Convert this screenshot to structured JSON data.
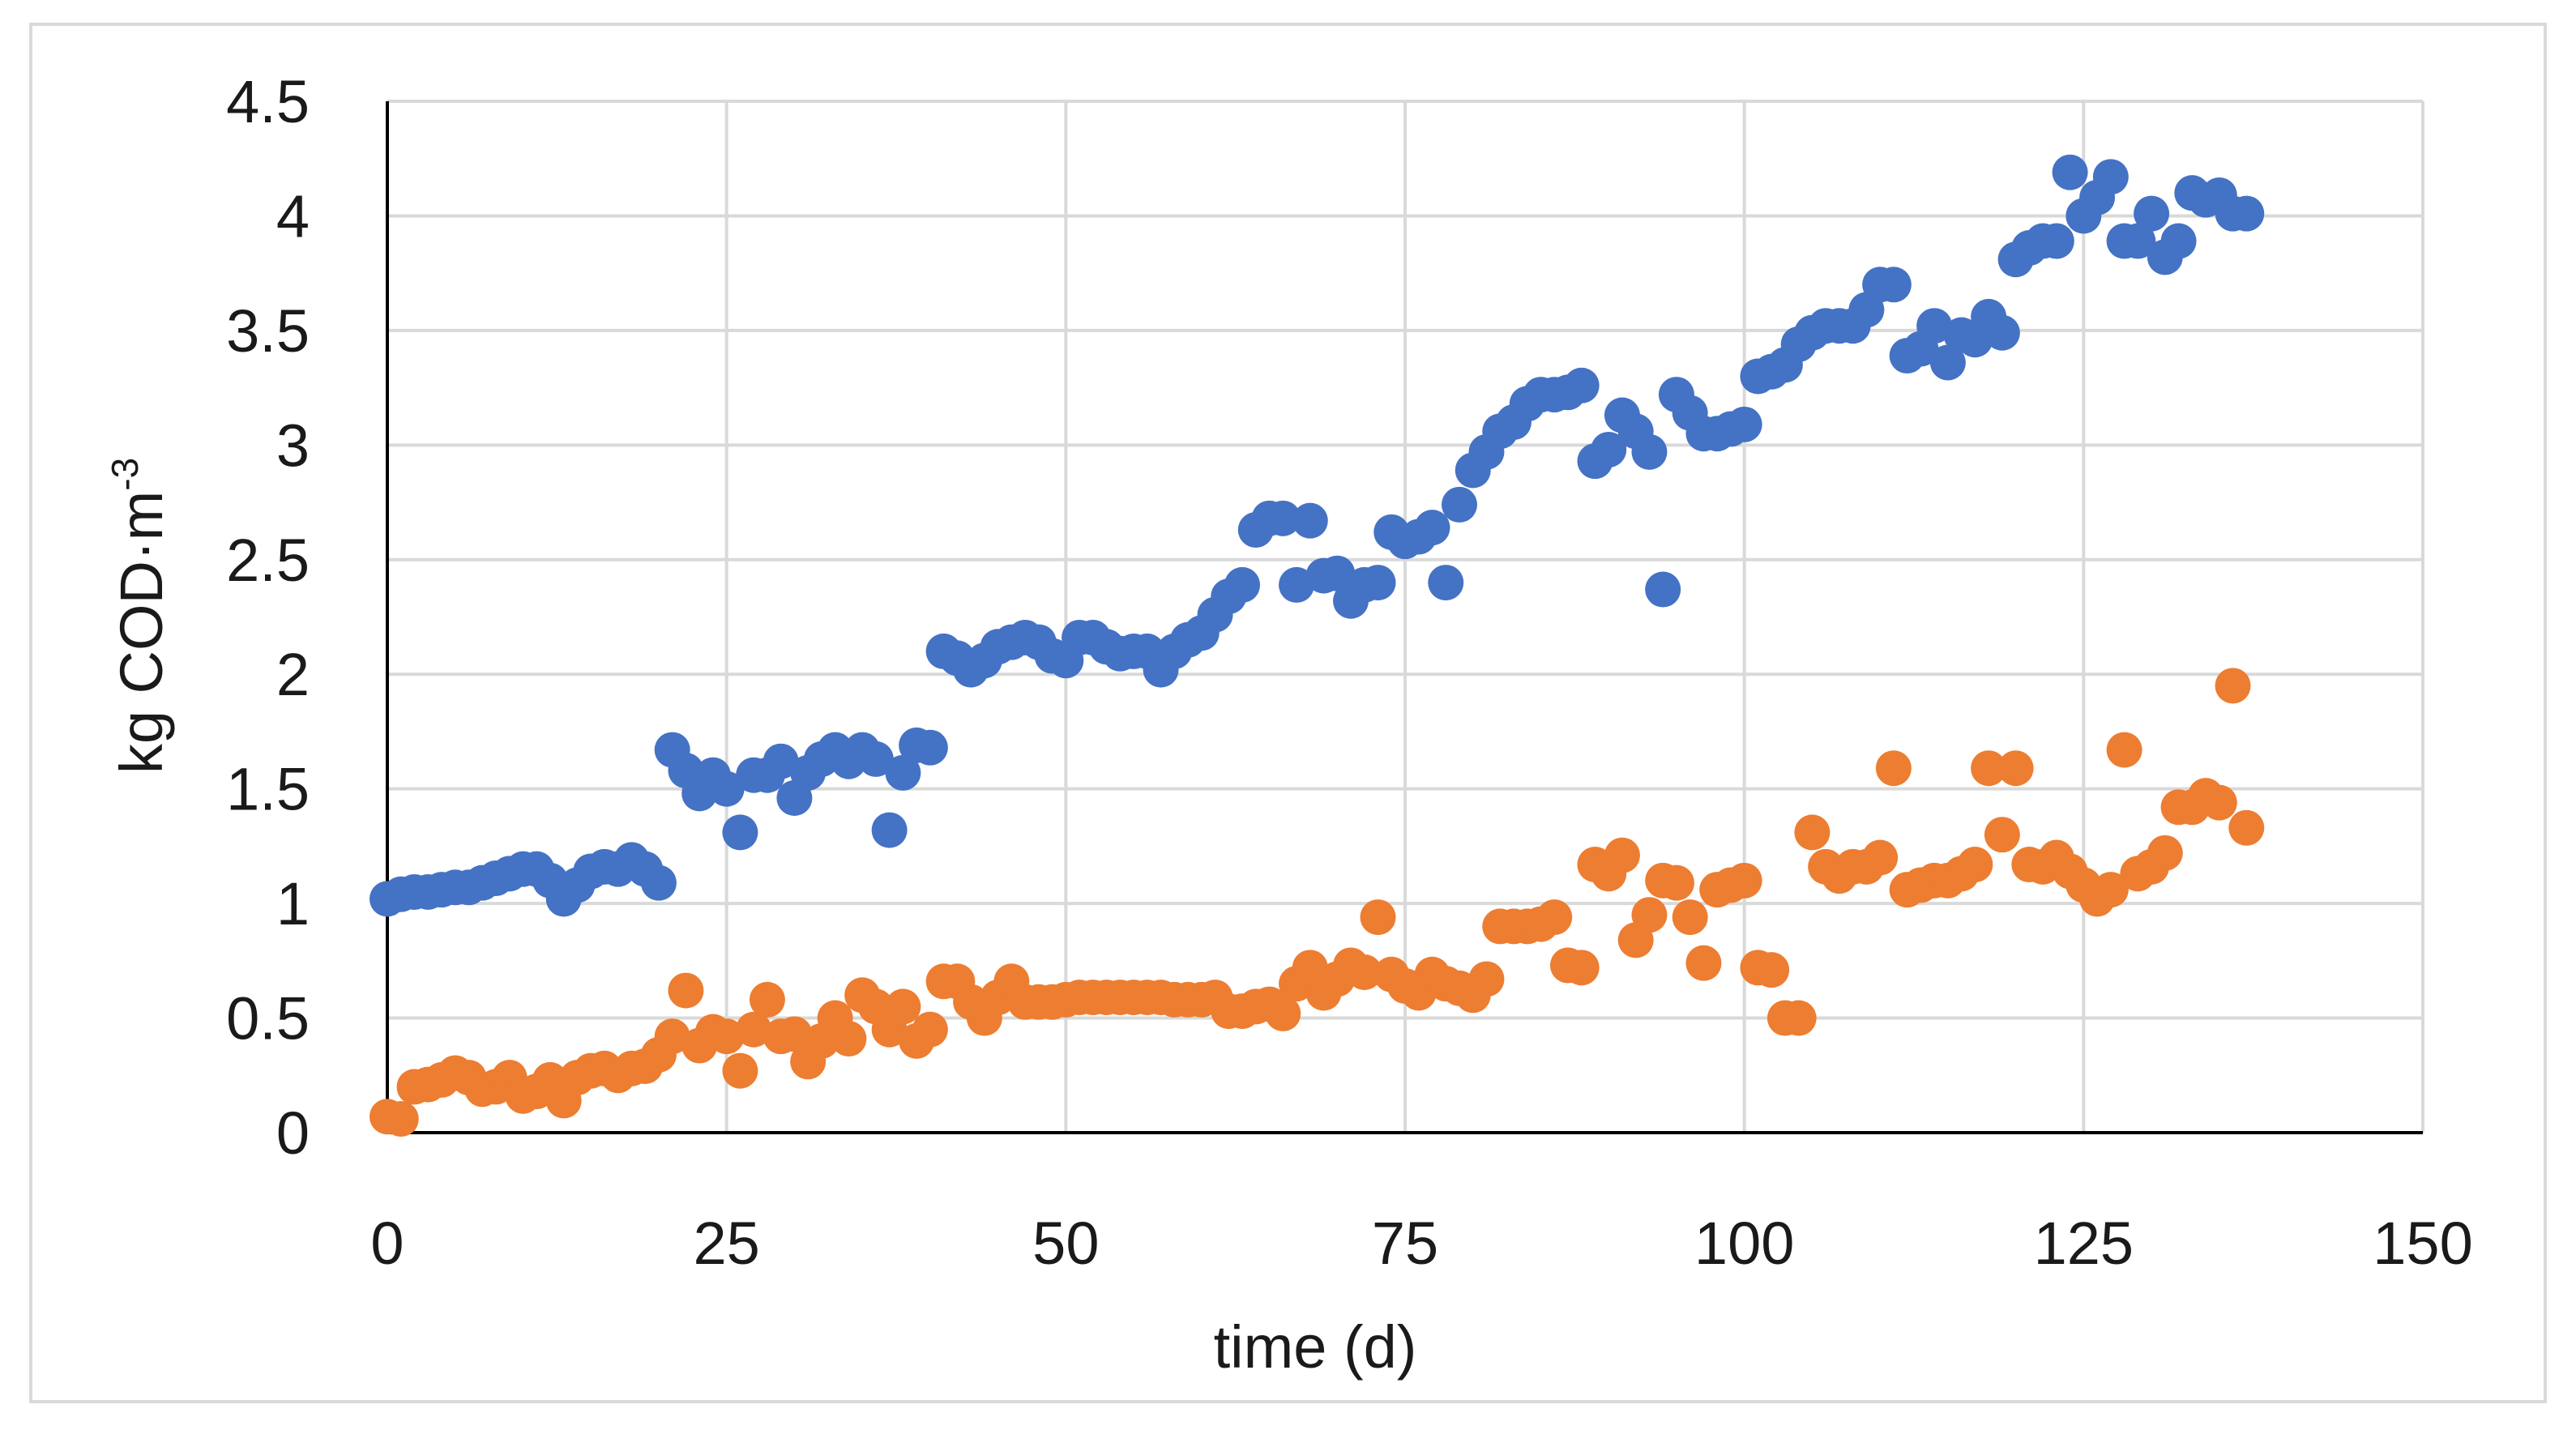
{
  "chart_data": {
    "type": "scatter",
    "title": "",
    "xlabel": "time (d)",
    "ylabel": {
      "text": "kg COD·m",
      "superscript": "-3"
    },
    "xlim": [
      0,
      150
    ],
    "ylim": [
      0,
      4.5
    ],
    "xticks": [
      0,
      25,
      50,
      75,
      100,
      125,
      150
    ],
    "yticks": [
      0,
      0.5,
      1,
      1.5,
      2,
      2.5,
      3,
      3.5,
      4,
      4.5
    ],
    "grid": true,
    "legend": "none",
    "series": [
      {
        "name": "series-blue",
        "color": "#4472C4",
        "x": [
          0,
          1,
          2,
          3,
          4,
          5,
          6,
          7,
          8,
          9,
          10,
          11,
          12,
          13,
          14,
          15,
          16,
          17,
          18,
          19,
          20,
          21,
          22,
          23,
          24,
          25,
          26,
          27,
          28,
          29,
          30,
          31,
          32,
          33,
          34,
          35,
          36,
          37,
          38,
          39,
          40,
          41,
          42,
          43,
          44,
          45,
          46,
          47,
          48,
          49,
          50,
          51,
          52,
          53,
          54,
          55,
          56,
          57,
          58,
          59,
          60,
          61,
          62,
          63,
          64,
          65,
          66,
          67,
          68,
          69,
          70,
          71,
          72,
          73,
          74,
          75,
          76,
          77,
          78,
          79,
          80,
          81,
          82,
          83,
          84,
          85,
          86,
          87,
          88,
          89,
          90,
          91,
          92,
          93,
          94,
          95,
          96,
          97,
          98,
          99,
          100,
          101,
          102,
          103,
          104,
          105,
          106,
          107,
          108,
          109,
          110,
          111,
          112,
          113,
          114,
          115,
          116,
          117,
          118,
          119,
          120,
          121,
          122,
          123,
          124,
          125,
          126,
          127,
          128,
          129,
          130,
          131,
          132,
          133,
          134,
          135,
          136,
          137
        ],
        "y": [
          1.02,
          1.04,
          1.05,
          1.05,
          1.06,
          1.07,
          1.07,
          1.09,
          1.11,
          1.13,
          1.15,
          1.15,
          1.1,
          1.02,
          1.08,
          1.14,
          1.16,
          1.15,
          1.19,
          1.15,
          1.09,
          1.67,
          1.58,
          1.48,
          1.56,
          1.5,
          1.31,
          1.56,
          1.56,
          1.62,
          1.46,
          1.57,
          1.63,
          1.67,
          1.62,
          1.67,
          1.63,
          1.32,
          1.57,
          1.69,
          1.68,
          2.1,
          2.07,
          2.02,
          2.06,
          2.12,
          2.14,
          2.16,
          2.14,
          2.08,
          2.06,
          2.16,
          2.16,
          2.12,
          2.09,
          2.1,
          2.1,
          2.02,
          2.1,
          2.15,
          2.18,
          2.26,
          2.34,
          2.39,
          2.63,
          2.68,
          2.68,
          2.39,
          2.67,
          2.43,
          2.44,
          2.32,
          2.39,
          2.4,
          2.62,
          2.58,
          2.6,
          2.64,
          2.4,
          2.74,
          2.89,
          2.97,
          3.06,
          3.1,
          3.18,
          3.22,
          3.22,
          3.23,
          3.26,
          2.93,
          2.98,
          3.13,
          3.06,
          2.97,
          2.37,
          3.22,
          3.14,
          3.05,
          3.05,
          3.07,
          3.09,
          3.3,
          3.32,
          3.35,
          3.44,
          3.49,
          3.52,
          3.52,
          3.52,
          3.59,
          3.7,
          3.7,
          3.39,
          3.42,
          3.52,
          3.36,
          3.48,
          3.46,
          3.56,
          3.49,
          3.81,
          3.86,
          3.89,
          3.89,
          4.19,
          4.0,
          4.08,
          4.17,
          3.89,
          3.89,
          4.01,
          3.82,
          3.89,
          4.1,
          4.07,
          4.09,
          4.01,
          4.01
        ]
      },
      {
        "name": "series-orange",
        "color": "#ED7D31",
        "x": [
          0,
          1,
          2,
          3,
          4,
          5,
          6,
          7,
          8,
          9,
          10,
          11,
          12,
          13,
          14,
          15,
          16,
          17,
          18,
          19,
          20,
          21,
          22,
          23,
          24,
          25,
          26,
          27,
          28,
          29,
          30,
          31,
          32,
          33,
          34,
          35,
          36,
          37,
          38,
          39,
          40,
          41,
          42,
          43,
          44,
          45,
          46,
          47,
          48,
          49,
          50,
          51,
          52,
          53,
          54,
          55,
          56,
          57,
          58,
          59,
          60,
          61,
          62,
          63,
          64,
          65,
          66,
          67,
          68,
          69,
          70,
          71,
          72,
          73,
          74,
          75,
          76,
          77,
          78,
          79,
          80,
          81,
          82,
          83,
          84,
          85,
          86,
          87,
          88,
          89,
          90,
          91,
          92,
          93,
          94,
          95,
          96,
          97,
          98,
          99,
          100,
          101,
          102,
          103,
          104,
          105,
          106,
          107,
          108,
          109,
          110,
          111,
          112,
          113,
          114,
          115,
          116,
          117,
          118,
          119,
          120,
          121,
          122,
          123,
          124,
          125,
          126,
          127,
          128,
          129,
          130,
          131,
          132,
          133,
          134,
          135,
          136,
          137
        ],
        "y": [
          0.07,
          0.06,
          0.2,
          0.21,
          0.23,
          0.26,
          0.24,
          0.19,
          0.2,
          0.24,
          0.16,
          0.18,
          0.23,
          0.14,
          0.24,
          0.27,
          0.28,
          0.25,
          0.28,
          0.29,
          0.34,
          0.42,
          0.62,
          0.38,
          0.44,
          0.42,
          0.27,
          0.45,
          0.58,
          0.42,
          0.43,
          0.31,
          0.4,
          0.5,
          0.41,
          0.6,
          0.55,
          0.45,
          0.55,
          0.4,
          0.45,
          0.66,
          0.66,
          0.57,
          0.5,
          0.59,
          0.66,
          0.57,
          0.57,
          0.57,
          0.58,
          0.59,
          0.59,
          0.59,
          0.59,
          0.59,
          0.59,
          0.59,
          0.58,
          0.58,
          0.58,
          0.59,
          0.53,
          0.53,
          0.55,
          0.56,
          0.52,
          0.65,
          0.72,
          0.61,
          0.67,
          0.73,
          0.7,
          0.94,
          0.69,
          0.64,
          0.61,
          0.69,
          0.65,
          0.63,
          0.6,
          0.67,
          0.9,
          0.9,
          0.9,
          0.91,
          0.94,
          0.73,
          0.72,
          1.17,
          1.13,
          1.21,
          0.84,
          0.95,
          1.1,
          1.09,
          0.94,
          0.74,
          1.06,
          1.08,
          1.1,
          0.72,
          0.71,
          0.5,
          0.5,
          1.31,
          1.16,
          1.12,
          1.16,
          1.16,
          1.2,
          1.59,
          1.06,
          1.08,
          1.1,
          1.1,
          1.13,
          1.17,
          1.59,
          1.3,
          1.59,
          1.17,
          1.16,
          1.2,
          1.14,
          1.08,
          1.02,
          1.06,
          1.67,
          1.13,
          1.16,
          1.22,
          1.42,
          1.42,
          1.47,
          1.44,
          1.95,
          1.33
        ]
      }
    ]
  }
}
